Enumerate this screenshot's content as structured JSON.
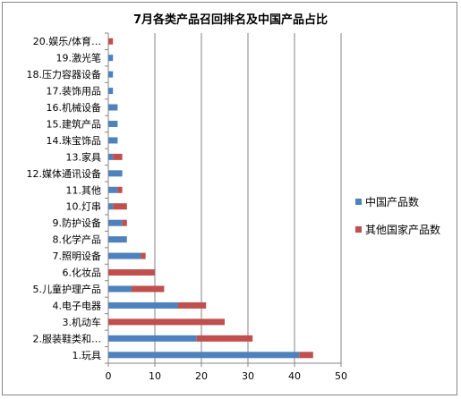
{
  "chart_data": {
    "type": "bar",
    "orientation": "horizontal",
    "stacked": true,
    "title": "7月各类产品召回排名及中国产品占比",
    "categories": [
      "1.玩具",
      "2.服装鞋类和…",
      "3.机动车",
      "4.电子电器",
      "5.儿童护理产品",
      "6.化妆品",
      "7.照明设备",
      "8.化学产品",
      "9.防护设备",
      "10.灯串",
      "11.其他",
      "12.媒体通讯设备",
      "13.家具",
      "14.珠宝饰品",
      "15.建筑产品",
      "16.机械设备",
      "17.装饰用品",
      "18.压力容器设备",
      "19.激光笔",
      "20.娱乐/体育…"
    ],
    "series": [
      {
        "name": "中国产品数",
        "color": "#4F81BD",
        "values": [
          41,
          19,
          0,
          15,
          5,
          0,
          7,
          4,
          3,
          1,
          2,
          3,
          1,
          2,
          2,
          2,
          1,
          1,
          1,
          0
        ]
      },
      {
        "name": "其他国家产品数",
        "color": "#C0504D",
        "values": [
          3,
          12,
          25,
          6,
          7,
          10,
          1,
          0,
          1,
          3,
          1,
          0,
          2,
          0,
          0,
          0,
          0,
          0,
          0,
          1
        ]
      }
    ],
    "xlim": [
      0,
      50
    ],
    "xticks": [
      0,
      10,
      20,
      30,
      40,
      50
    ],
    "grid": true,
    "legend_position": "right"
  }
}
